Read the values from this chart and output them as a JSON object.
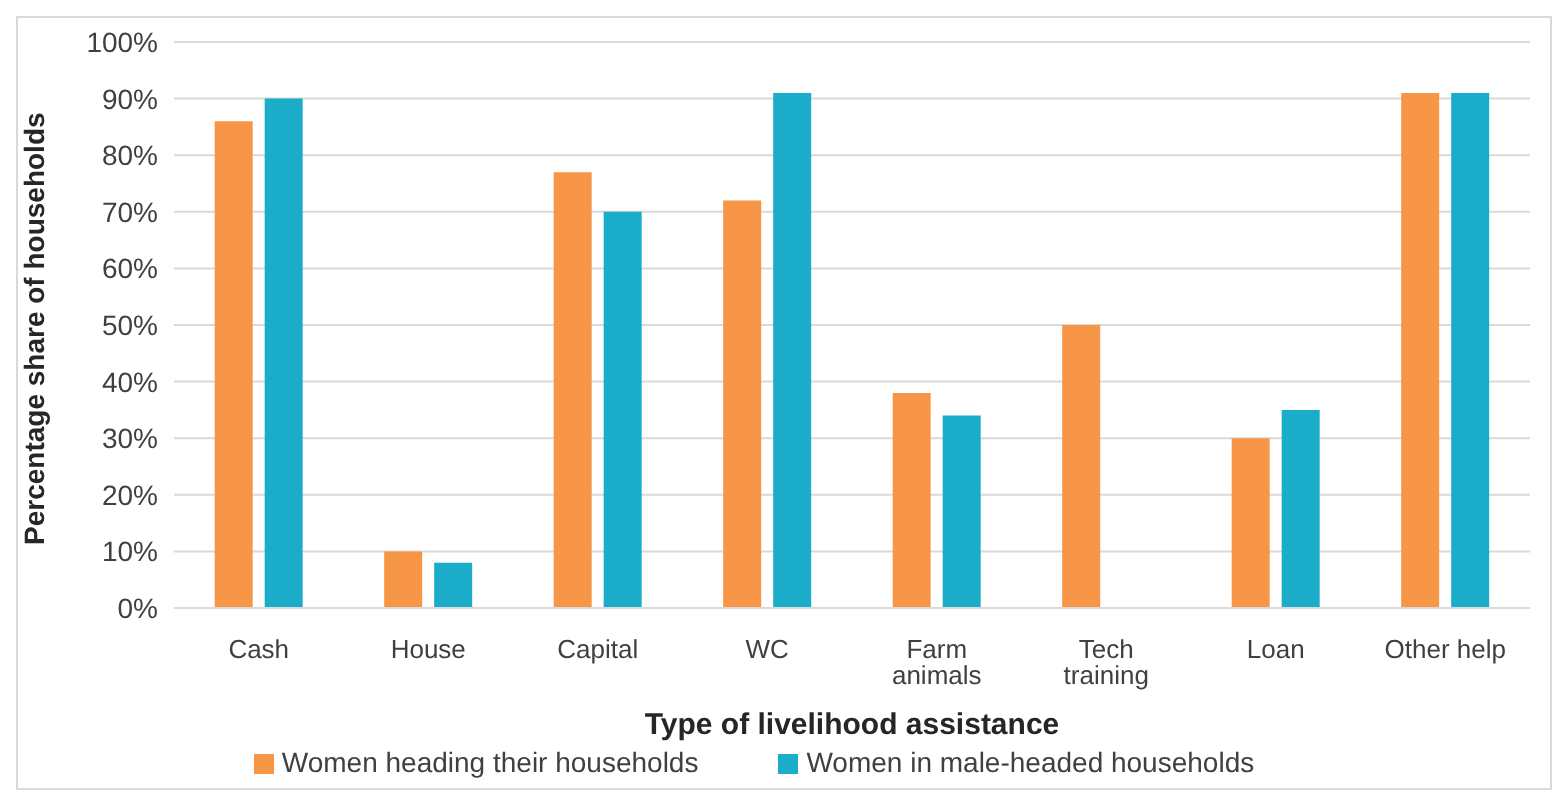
{
  "chart_data": {
    "type": "bar",
    "xlabel": "Type of livelihood assistance",
    "ylabel": "Percentage share of households",
    "categories": [
      "Cash",
      "House",
      "Capital",
      "WC",
      "Farm animals",
      "Tech training",
      "Loan",
      "Other help"
    ],
    "series": [
      {
        "name": "Women heading their households",
        "color": "#f79646",
        "values": [
          86,
          10,
          77,
          72,
          38,
          50,
          30,
          91
        ]
      },
      {
        "name": "Women in male-headed households",
        "color": "#1aacc8",
        "values": [
          90,
          8,
          70,
          91,
          34,
          null,
          35,
          91
        ]
      }
    ],
    "ylim": [
      0,
      100
    ],
    "yticks": [
      {
        "value": 0,
        "label": "0%"
      },
      {
        "value": 10,
        "label": "10%"
      },
      {
        "value": 20,
        "label": "20%"
      },
      {
        "value": 30,
        "label": "30%"
      },
      {
        "value": 40,
        "label": "40%"
      },
      {
        "value": 50,
        "label": "50%"
      },
      {
        "value": 60,
        "label": "60%"
      },
      {
        "value": 70,
        "label": "70%"
      },
      {
        "value": 80,
        "label": "80%"
      },
      {
        "value": 90,
        "label": "90%"
      },
      {
        "value": 100,
        "label": "100%"
      }
    ],
    "grid": "y",
    "legend": "bottom"
  }
}
